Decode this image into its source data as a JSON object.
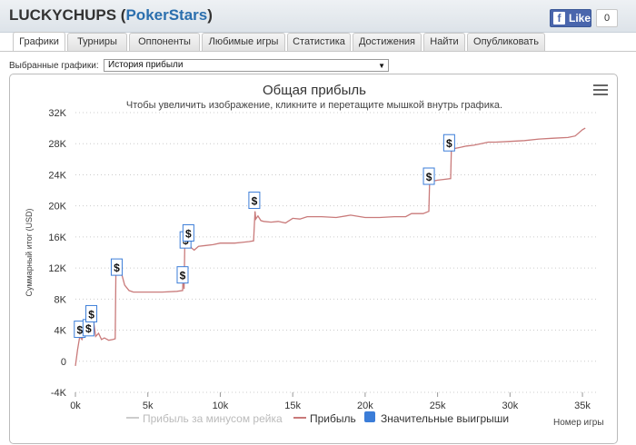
{
  "header": {
    "player": "LUCKYCHUPS",
    "room_open": "(",
    "room": "PokerStars",
    "room_close": ")",
    "fb_like_label": "Like",
    "fb_icon": "f",
    "fb_count": "0"
  },
  "tabs": [
    {
      "label": "Графики",
      "active": true
    },
    {
      "label": "Турниры"
    },
    {
      "label": "Оппоненты"
    },
    {
      "label": "Любимые игры"
    },
    {
      "label": "Статистика"
    },
    {
      "label": "Достижения"
    },
    {
      "label": "Найти"
    },
    {
      "label": "Опубликовать"
    }
  ],
  "selector": {
    "label": "Выбранные графики:",
    "value": "История прибыли",
    "arrow": "▼"
  },
  "icons": {
    "menu": "menu-icon",
    "big_win": "dollar-flag-icon",
    "fb": "facebook-icon"
  },
  "colors": {
    "profit_line": "#c97a7a",
    "rake_line": "#cccccc",
    "big_win_marker": "#3b7dd8",
    "grid": "#cccccc"
  },
  "chart_data": {
    "type": "line",
    "title": "Общая прибыль",
    "subtitle": "Чтобы увеличить изображение, кликните и перетащите мышкой внутрь графика.",
    "xlabel": "Номер игры",
    "ylabel": "Суммарный итог (USD)",
    "xlim": [
      0,
      36000
    ],
    "ylim": [
      -4000,
      32000
    ],
    "x_ticks": [
      "0k",
      "5k",
      "10k",
      "15k",
      "20k",
      "25k",
      "30k",
      "35k"
    ],
    "x_tick_values": [
      0,
      5000,
      10000,
      15000,
      20000,
      25000,
      30000,
      35000
    ],
    "y_ticks": [
      "-4K",
      "0",
      "4K",
      "8K",
      "12K",
      "16K",
      "20K",
      "24K",
      "28K",
      "32K"
    ],
    "y_tick_values": [
      -4000,
      0,
      4000,
      8000,
      12000,
      16000,
      20000,
      24000,
      28000,
      32000
    ],
    "grid": "horizontal dotted",
    "legend": "bottom-center",
    "series": [
      {
        "name": "Прибыль за минусом рейка",
        "visible": false,
        "x": [],
        "y": []
      },
      {
        "name": "Прибыль",
        "visible": true,
        "x": [
          0,
          150,
          300,
          450,
          600,
          750,
          900,
          1050,
          1200,
          1400,
          1600,
          1800,
          2000,
          2300,
          2600,
          2750,
          2800,
          2900,
          3050,
          3200,
          3400,
          3700,
          4000,
          4500,
          5000,
          6000,
          7000,
          7400,
          7450,
          7500,
          7550,
          7650,
          7700,
          7800,
          7850,
          8000,
          8200,
          8500,
          9000,
          9500,
          10000,
          10500,
          11000,
          11500,
          12000,
          12300,
          12400,
          12450,
          12600,
          12800,
          13000,
          13500,
          14000,
          14500,
          15000,
          15500,
          16000,
          17000,
          18000,
          19000,
          20000,
          21000,
          22000,
          22800,
          23200,
          23500,
          24000,
          24400,
          24450,
          24700,
          25000,
          25400,
          25900,
          25950,
          26500,
          27000,
          27500,
          28000,
          28500,
          29000,
          30000,
          31000,
          32000,
          33000,
          34000,
          34500,
          35000,
          35200
        ],
        "y": [
          -600,
          1500,
          3200,
          2800,
          3600,
          3800,
          5300,
          4200,
          5900,
          3200,
          3600,
          2800,
          3000,
          2700,
          2800,
          2900,
          11800,
          12200,
          11600,
          11200,
          9800,
          9100,
          8900,
          8900,
          8900,
          8900,
          9000,
          9100,
          11800,
          9300,
          15100,
          16200,
          14600,
          16500,
          15200,
          14600,
          14300,
          14800,
          14900,
          15000,
          15200,
          15200,
          15200,
          15300,
          15400,
          15500,
          19300,
          18300,
          18700,
          18100,
          18000,
          17900,
          18000,
          17800,
          18400,
          18300,
          18600,
          18600,
          18500,
          18800,
          18500,
          18500,
          18600,
          18600,
          19000,
          19000,
          19000,
          19300,
          22900,
          23200,
          23300,
          23400,
          23500,
          27300,
          27500,
          27700,
          27800,
          28000,
          28200,
          28200,
          28300,
          28400,
          28600,
          28700,
          28800,
          29000,
          29800,
          30000
        ]
      },
      {
        "name": "Значительные выигрыши",
        "visible": true,
        "type": "flags",
        "label": "$",
        "x": [
          300,
          900,
          1100,
          2850,
          7400,
          7600,
          7800,
          12350,
          24400,
          25800
        ],
        "y": [
          4000,
          4200,
          6000,
          12000,
          11000,
          15500,
          16400,
          20600,
          23700,
          28000
        ]
      }
    ]
  }
}
